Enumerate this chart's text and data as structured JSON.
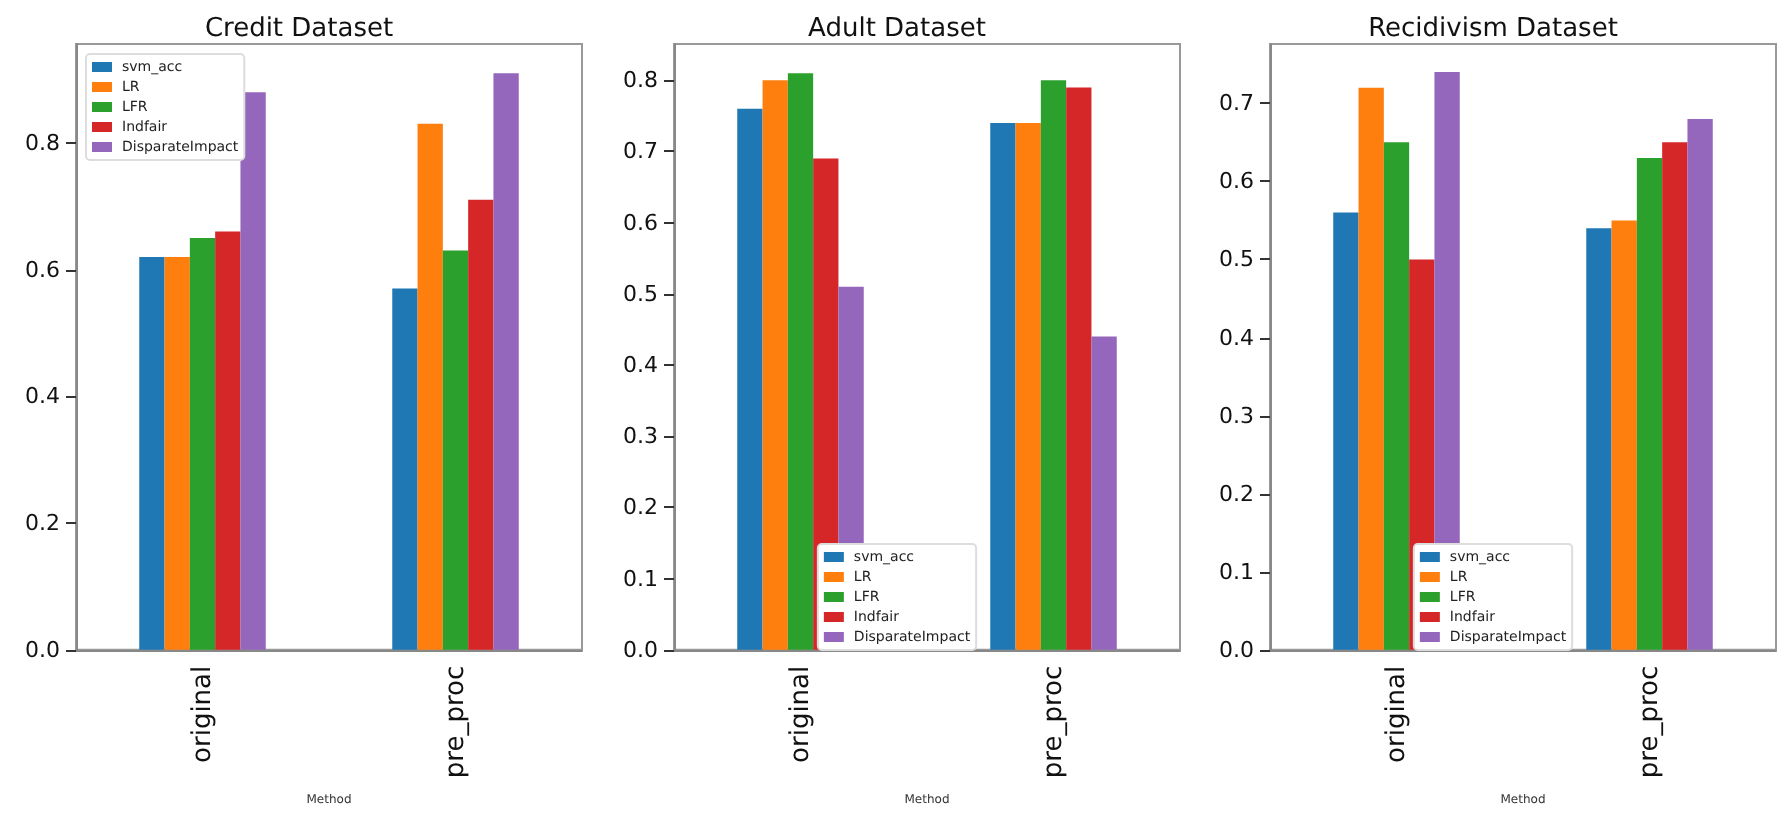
{
  "chart_data": [
    {
      "type": "bar",
      "title": "Credit Dataset",
      "xlabel": "Method",
      "categories": [
        "original",
        "pre_proc"
      ],
      "series": [
        {
          "name": "svm_acc",
          "color": "#1f77b4",
          "values": [
            0.62,
            0.57
          ]
        },
        {
          "name": "LR",
          "color": "#ff7f0e",
          "values": [
            0.62,
            0.83
          ]
        },
        {
          "name": "LFR",
          "color": "#2ca02c",
          "values": [
            0.65,
            0.63
          ]
        },
        {
          "name": "Indfair",
          "color": "#d62728",
          "values": [
            0.66,
            0.71
          ]
        },
        {
          "name": "DisparateImpact",
          "color": "#9467bd",
          "values": [
            0.88,
            0.91
          ]
        }
      ],
      "ylim": [
        0,
        0.956
      ],
      "yticks": [
        {
          "value": 0,
          "label": "0.0"
        },
        {
          "value": 0.2,
          "label": "0.2"
        },
        {
          "value": 0.4,
          "label": "0.4"
        },
        {
          "value": 0.6,
          "label": "0.6"
        },
        {
          "value": 0.8,
          "label": "0.8"
        }
      ],
      "grid": false,
      "legend": "top left"
    },
    {
      "type": "bar",
      "title": "Adult Dataset",
      "xlabel": "Method",
      "categories": [
        "original",
        "pre_proc"
      ],
      "series": [
        {
          "name": "svm_acc",
          "color": "#1f77b4",
          "values": [
            0.76,
            0.74
          ]
        },
        {
          "name": "LR",
          "color": "#ff7f0e",
          "values": [
            0.8,
            0.74
          ]
        },
        {
          "name": "LFR",
          "color": "#2ca02c",
          "values": [
            0.81,
            0.8
          ]
        },
        {
          "name": "Indfair",
          "color": "#d62728",
          "values": [
            0.69,
            0.79
          ]
        },
        {
          "name": "DisparateImpact",
          "color": "#9467bd",
          "values": [
            0.51,
            0.44
          ]
        }
      ],
      "ylim": [
        0,
        0.851
      ],
      "yticks": [
        {
          "value": 0,
          "label": "0.0"
        },
        0.1,
        0.2,
        0.3,
        0.4,
        0.5,
        0.6,
        0.7,
        0.8
      ],
      "grid": false,
      "legend": "bottom"
    },
    {
      "type": "bar",
      "title": "Recidivism Dataset",
      "xlabel": "Method",
      "categories": [
        "original",
        "pre_proc"
      ],
      "series": [
        {
          "name": "svm_acc",
          "color": "#1f77b4",
          "values": [
            0.56,
            0.54
          ]
        },
        {
          "name": "LR",
          "color": "#ff7f0e",
          "values": [
            0.72,
            0.55
          ]
        },
        {
          "name": "LFR",
          "color": "#2ca02c",
          "values": [
            0.65,
            0.63
          ]
        },
        {
          "name": "Indfair",
          "color": "#d62728",
          "values": [
            0.5,
            0.65
          ]
        },
        {
          "name": "DisparateImpact",
          "color": "#9467bd",
          "values": [
            0.74,
            0.68
          ]
        }
      ],
      "ylim": [
        0,
        0.776
      ],
      "yticks": [
        {
          "value": 0,
          "label": "0.0"
        },
        0.1,
        0.2,
        0.3,
        0.4,
        0.5,
        0.6,
        0.7
      ],
      "grid": false,
      "legend": "bottom"
    }
  ]
}
